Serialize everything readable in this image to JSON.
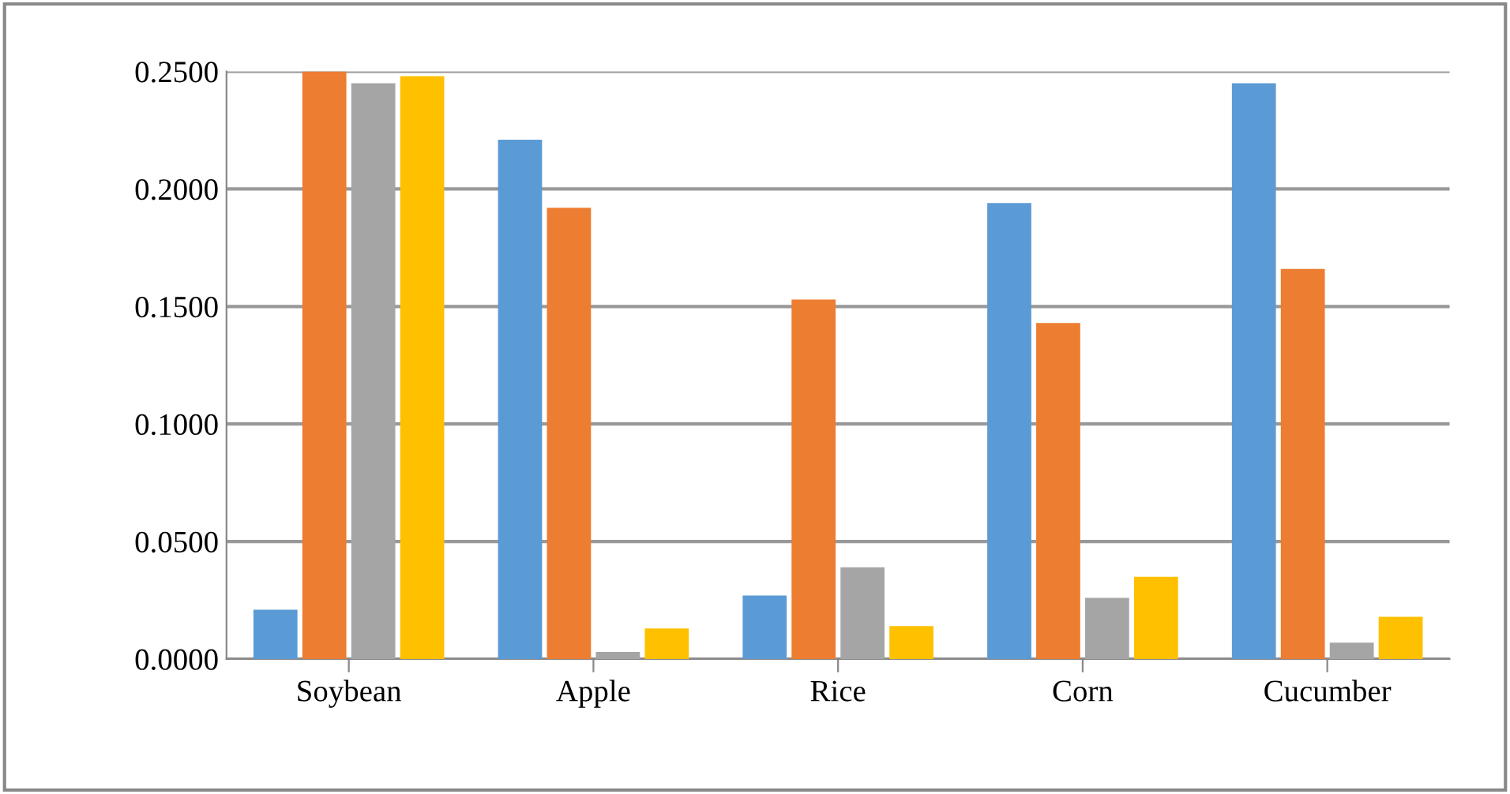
{
  "chart_data": {
    "type": "bar",
    "categories": [
      "Soybean",
      "Apple",
      "Rice",
      "Corn",
      "Cucumber"
    ],
    "series": [
      {
        "color": "#5b9bd5",
        "values": [
          0.021,
          0.221,
          0.027,
          0.194,
          0.245
        ]
      },
      {
        "color": "#ed7d31",
        "values": [
          0.25,
          0.192,
          0.153,
          0.143,
          0.166
        ]
      },
      {
        "color": "#a5a5a5",
        "values": [
          0.245,
          0.003,
          0.039,
          0.026,
          0.007
        ]
      },
      {
        "color": "#ffc000",
        "values": [
          0.248,
          0.013,
          0.014,
          0.035,
          0.018
        ]
      }
    ],
    "ylim": [
      0,
      0.25
    ],
    "yticks": [
      {
        "value": 0,
        "label": "0.0000"
      },
      {
        "value": 0.05,
        "label": "0.0500"
      },
      {
        "value": 0.1,
        "label": "0.1000"
      },
      {
        "value": 0.15,
        "label": "0.1500"
      },
      {
        "value": 0.2,
        "label": "0.2000"
      },
      {
        "value": 0.25,
        "label": "0.2500"
      }
    ],
    "grid": "y"
  }
}
